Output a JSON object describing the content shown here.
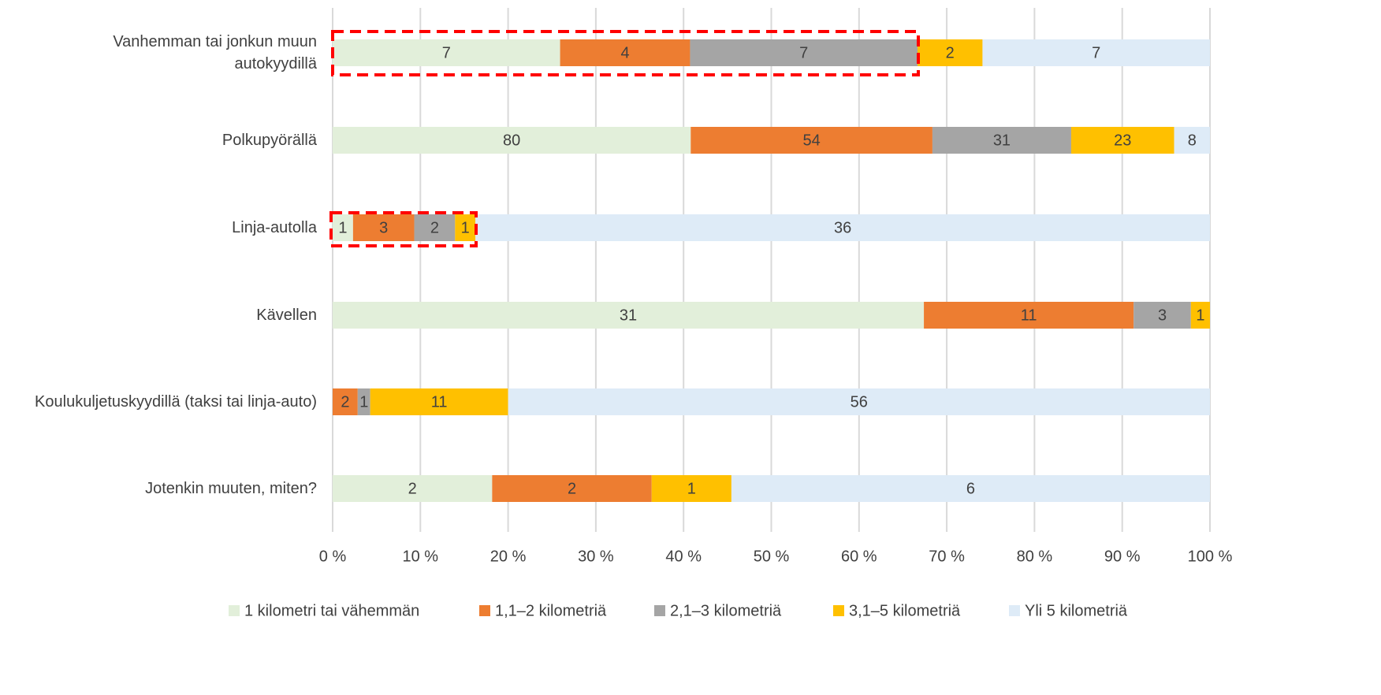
{
  "chart_data": {
    "type": "stacked_bar_percent",
    "orientation": "horizontal",
    "categories": [
      "Vanhemman tai jonkun muun\nautokyydillä",
      "Polkupyörällä",
      "Linja-autolla",
      "Kävellen",
      "Koulukuljetuskyydillä (taksi tai linja-auto)",
      "Jotenkin muuten, miten?"
    ],
    "series": [
      {
        "name": "1 kilometri tai vähemmän",
        "color": "#e2efda",
        "values": [
          7,
          80,
          1,
          31,
          0,
          2
        ]
      },
      {
        "name": "1,1–2 kilometriä",
        "color": "#ed7d31",
        "values": [
          4,
          54,
          3,
          11,
          2,
          2
        ]
      },
      {
        "name": "2,1–3 kilometriä",
        "color": "#a5a5a5",
        "values": [
          7,
          31,
          2,
          3,
          1,
          0
        ]
      },
      {
        "name": "3,1–5 kilometriä",
        "color": "#ffc000",
        "values": [
          2,
          23,
          1,
          1,
          11,
          1
        ]
      },
      {
        "name": "Yli 5 kilometriä",
        "color": "#deebf7",
        "values": [
          7,
          8,
          36,
          0,
          56,
          6
        ]
      }
    ],
    "xlim": [
      0,
      100
    ],
    "xticks": [
      {
        "value": 0,
        "label": "0 %"
      },
      {
        "value": 10,
        "label": "10 %"
      },
      {
        "value": 20,
        "label": "20 %"
      },
      {
        "value": 30,
        "label": "30 %"
      },
      {
        "value": 40,
        "label": "40 %"
      },
      {
        "value": 50,
        "label": "50 %"
      },
      {
        "value": 60,
        "label": "60 %"
      },
      {
        "value": 70,
        "label": "70 %"
      },
      {
        "value": 80,
        "label": "80 %"
      },
      {
        "value": 90,
        "label": "90 %"
      },
      {
        "value": 100,
        "label": "100 %"
      }
    ],
    "grid": true,
    "legend": "bottom"
  }
}
